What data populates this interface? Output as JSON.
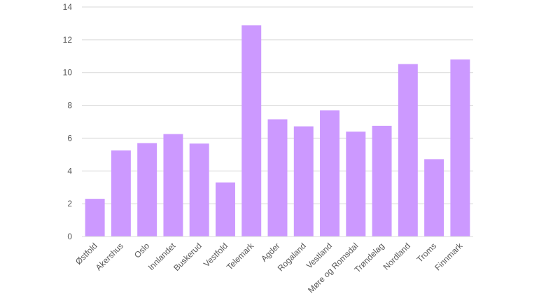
{
  "chart_data": {
    "type": "bar",
    "categories": [
      "Østfold",
      "Akershus",
      "Oslo",
      "Innlandet",
      "Buskerud",
      "Vestfold",
      "Telemark",
      "Agder",
      "Rogaland",
      "Vestland",
      "Møre og Romsdal",
      "Trøndelag",
      "Nordland",
      "Troms",
      "Finnmark"
    ],
    "values": [
      2.3,
      5.25,
      5.7,
      6.25,
      5.67,
      3.3,
      12.88,
      7.15,
      6.72,
      7.7,
      6.4,
      6.75,
      10.52,
      4.72,
      10.8
    ],
    "title": "",
    "xlabel": "",
    "ylabel": "",
    "ylim": [
      0,
      14
    ],
    "yticks": [
      0,
      2,
      4,
      6,
      8,
      10,
      12,
      14
    ],
    "grid": true,
    "legend": "none",
    "bar_color": "#cc99ff"
  }
}
